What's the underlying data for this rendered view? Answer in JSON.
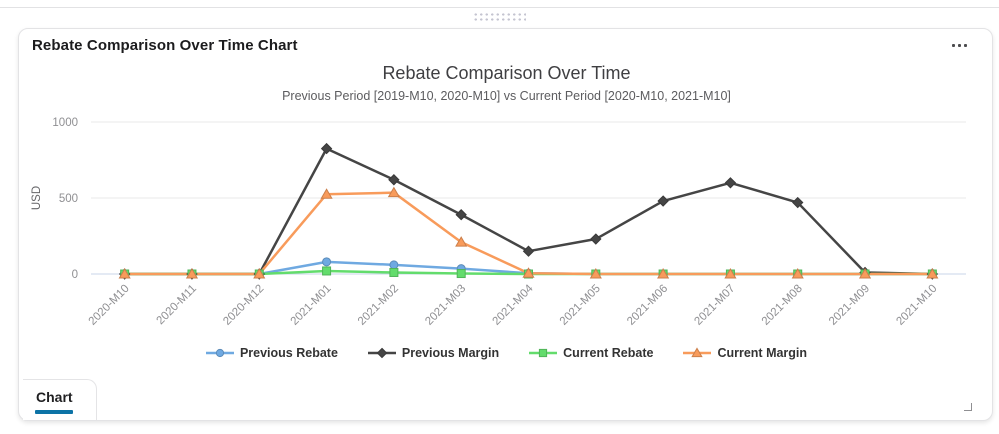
{
  "widget": {
    "title": "Rebate Comparison Over Time Chart",
    "more_options_icon": "ellipsis-horizontal-icon",
    "drag_handle_icon": "drag-dots-icon",
    "resize_icon": "resize-corner-icon",
    "footer_tab": {
      "label": "Chart",
      "active": true,
      "underline_color": "#0d73a6"
    }
  },
  "chart_data": {
    "type": "line",
    "title": "Rebate Comparison Over Time",
    "subtitle": "Previous Period [2019-M10, 2020-M10] vs Current Period [2020-M10, 2021-M10]",
    "ylabel": "USD",
    "xlabel": "",
    "ylim": [
      0,
      1000
    ],
    "yticks": [
      0,
      500,
      1000
    ],
    "grid": true,
    "legend_position": "bottom",
    "x_label_rotation": -45,
    "axis_zero_line_color": "#c9d6e9",
    "gridline_color": "#e8e8ea",
    "tick_label_color": "#8f8f92",
    "categories": [
      "2020-M10",
      "2020-M11",
      "2020-M12",
      "2021-M01",
      "2021-M02",
      "2021-M03",
      "2021-M04",
      "2021-M05",
      "2021-M06",
      "2021-M07",
      "2021-M08",
      "2021-M09",
      "2021-M10"
    ],
    "series": [
      {
        "name": "Previous Rebate",
        "color": "#6FA9E1",
        "marker": "circle",
        "values": [
          0,
          0,
          0,
          80,
          60,
          35,
          5,
          0,
          0,
          0,
          0,
          0,
          0
        ]
      },
      {
        "name": "Previous Margin",
        "color": "#454545",
        "marker": "diamond",
        "values": [
          0,
          0,
          0,
          825,
          620,
          390,
          150,
          230,
          480,
          600,
          470,
          10,
          0
        ]
      },
      {
        "name": "Current Rebate",
        "color": "#63DC6C",
        "marker": "square",
        "values": [
          0,
          0,
          0,
          20,
          10,
          3,
          0,
          0,
          0,
          0,
          0,
          0,
          0
        ]
      },
      {
        "name": "Current Margin",
        "color": "#F89B5B",
        "marker": "triangle",
        "values": [
          0,
          0,
          0,
          525,
          535,
          210,
          5,
          0,
          0,
          0,
          0,
          0,
          0
        ]
      }
    ]
  }
}
